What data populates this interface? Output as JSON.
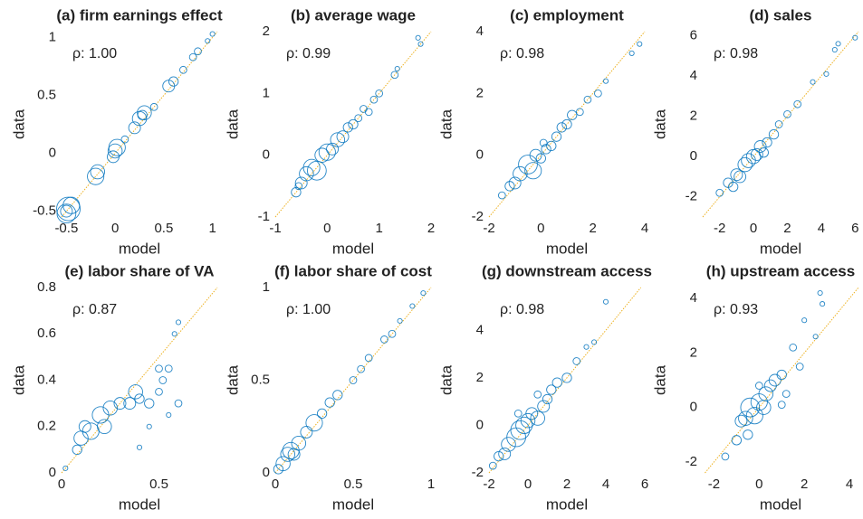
{
  "chart_data": [
    {
      "type": "scatter",
      "title": "(a) firm earnings effect",
      "xlabel": "model",
      "ylabel": "data",
      "annotation": "ρ: 1.00",
      "color": "#0072bd",
      "ref_color": "#edb120",
      "x": [
        -0.5,
        -0.48,
        -0.45,
        -0.5,
        -0.2,
        -0.18,
        0,
        0.02,
        -0.02,
        0.2,
        0.25,
        0.3,
        0.28,
        0.55,
        0.6,
        0.7,
        0.8,
        0.85,
        0.95,
        1.0,
        0.1,
        0.4
      ],
      "values": [
        -0.52,
        -0.48,
        -0.45,
        -0.5,
        -0.2,
        -0.16,
        0.02,
        0.05,
        -0.03,
        0.22,
        0.3,
        0.35,
        0.33,
        0.58,
        0.62,
        0.72,
        0.83,
        0.88,
        0.97,
        1.03,
        0.12,
        0.4
      ],
      "sizes": [
        8,
        10,
        7,
        5,
        7,
        6,
        6,
        7,
        5,
        5,
        6,
        6,
        4,
        5,
        4,
        3,
        3,
        3,
        2,
        2,
        3,
        3
      ],
      "xlim": [
        -0.55,
        1.05
      ],
      "xticks": [
        -0.5,
        0,
        0.5,
        1
      ],
      "ylim": [
        -0.55,
        1.05
      ],
      "yticks": [
        -0.5,
        0,
        0.5,
        1
      ]
    },
    {
      "type": "scatter",
      "title": "(b) average wage",
      "xlabel": "model",
      "ylabel": "data",
      "annotation": "ρ: 0.99",
      "color": "#0072bd",
      "ref_color": "#edb120",
      "x": [
        -0.6,
        -0.5,
        -0.4,
        -0.3,
        -0.2,
        -0.1,
        0,
        0.1,
        0.2,
        0.3,
        0.4,
        0.5,
        0.6,
        0.7,
        0.9,
        1.0,
        1.3,
        1.35,
        1.8,
        1.75,
        0.8,
        -0.55
      ],
      "values": [
        -0.6,
        -0.45,
        -0.3,
        -0.2,
        -0.25,
        0,
        0.05,
        0.1,
        0.25,
        0.3,
        0.45,
        0.5,
        0.6,
        0.75,
        0.9,
        1.0,
        1.3,
        1.4,
        1.8,
        1.9,
        0.7,
        -0.5
      ],
      "sizes": [
        4,
        5,
        6,
        7,
        8,
        6,
        7,
        5,
        6,
        5,
        4,
        4,
        3,
        3,
        3,
        3,
        3,
        2,
        2,
        2,
        3,
        3
      ],
      "xlim": [
        -1,
        2
      ],
      "xticks": [
        -1,
        0,
        1,
        2
      ],
      "ylim": [
        -1,
        2
      ],
      "yticks": [
        -1,
        0,
        1,
        2
      ]
    },
    {
      "type": "scatter",
      "title": "(c) employment",
      "xlabel": "model",
      "ylabel": "data",
      "annotation": "ρ: 0.98",
      "color": "#0072bd",
      "ref_color": "#edb120",
      "x": [
        -1.5,
        -1,
        -0.8,
        -0.5,
        -0.3,
        -0.2,
        0,
        0.2,
        0.4,
        0.6,
        0.8,
        1,
        1.2,
        1.5,
        1.8,
        2.2,
        3.5,
        3.8,
        -1.2,
        0.1,
        2.5
      ],
      "values": [
        -1.3,
        -0.9,
        -0.6,
        -0.3,
        -0.5,
        0,
        -0.1,
        0.2,
        0.3,
        0.6,
        0.9,
        1,
        1.3,
        1.4,
        1.8,
        2.0,
        3.3,
        3.6,
        -1,
        0.4,
        2.4
      ],
      "sizes": [
        3,
        5,
        6,
        8,
        7,
        5,
        4,
        4,
        4,
        4,
        4,
        4,
        4,
        3,
        3,
        3,
        2,
        2,
        4,
        3,
        2
      ],
      "xlim": [
        -2,
        4
      ],
      "xticks": [
        -2,
        0,
        2,
        4
      ],
      "ylim": [
        -2,
        4
      ],
      "yticks": [
        -2,
        0,
        2,
        4
      ]
    },
    {
      "type": "scatter",
      "title": "(d) sales",
      "xlabel": "model",
      "ylabel": "data",
      "annotation": "ρ: 0.98",
      "color": "#0072bd",
      "ref_color": "#edb120",
      "x": [
        -2,
        -1.5,
        -1,
        -0.8,
        -0.5,
        -0.3,
        0,
        0.2,
        0.4,
        0.8,
        1.2,
        1.5,
        2,
        2.6,
        3.5,
        4.3,
        4.8,
        5,
        6,
        -1.2,
        0.6
      ],
      "values": [
        -1.8,
        -1.3,
        -0.9,
        -1,
        -0.4,
        -0.2,
        0,
        0.1,
        0.5,
        0.7,
        1.1,
        1.6,
        2.1,
        2.6,
        3.7,
        4.1,
        5.3,
        5.6,
        5.9,
        -1.5,
        0.2
      ],
      "sizes": [
        3,
        4,
        5,
        5,
        6,
        6,
        6,
        5,
        5,
        4,
        4,
        3,
        3,
        3,
        2,
        2,
        2,
        2,
        2,
        4,
        4
      ],
      "xlim": [
        -3,
        6.2
      ],
      "xticks": [
        -2,
        0,
        2,
        4,
        6
      ],
      "ylim": [
        -3,
        6.2
      ],
      "yticks": [
        -2,
        0,
        2,
        4,
        6
      ]
    },
    {
      "type": "scatter",
      "title": "(e) labor share of VA",
      "xlabel": "model",
      "ylabel": "data",
      "annotation": "ρ: 0.87",
      "color": "#0072bd",
      "ref_color": "#edb120",
      "x": [
        0.02,
        0.08,
        0.1,
        0.12,
        0.15,
        0.2,
        0.22,
        0.25,
        0.3,
        0.35,
        0.38,
        0.4,
        0.45,
        0.5,
        0.52,
        0.55,
        0.58,
        0.6,
        0.6,
        0.55,
        0.45,
        0.4,
        0.5
      ],
      "values": [
        0.02,
        0.1,
        0.15,
        0.2,
        0.18,
        0.25,
        0.2,
        0.28,
        0.3,
        0.3,
        0.35,
        0.32,
        0.3,
        0.35,
        0.4,
        0.45,
        0.6,
        0.65,
        0.3,
        0.25,
        0.2,
        0.11,
        0.45
      ],
      "sizes": [
        2,
        4,
        6,
        5,
        7,
        7,
        6,
        6,
        5,
        5,
        6,
        4,
        4,
        3,
        3,
        3,
        2,
        2,
        3,
        2,
        2,
        2,
        3
      ],
      "xlim": [
        0,
        0.8
      ],
      "xticks": [
        0,
        0.5
      ],
      "ylim": [
        0,
        0.8
      ],
      "yticks": [
        0,
        0.2,
        0.4,
        0.6,
        0.8
      ]
    },
    {
      "type": "scatter",
      "title": "(f) labor share of cost",
      "xlabel": "model",
      "ylabel": "data",
      "annotation": "ρ: 1.00",
      "color": "#0072bd",
      "ref_color": "#edb120",
      "x": [
        0.02,
        0.05,
        0.08,
        0.1,
        0.15,
        0.2,
        0.25,
        0.3,
        0.35,
        0.4,
        0.5,
        0.55,
        0.6,
        0.7,
        0.75,
        0.8,
        0.88,
        0.95,
        0.12
      ],
      "values": [
        0.02,
        0.05,
        0.1,
        0.12,
        0.16,
        0.22,
        0.27,
        0.32,
        0.38,
        0.42,
        0.5,
        0.56,
        0.62,
        0.72,
        0.75,
        0.82,
        0.9,
        0.97,
        0.1
      ],
      "sizes": [
        4,
        6,
        6,
        7,
        6,
        5,
        7,
        4,
        4,
        4,
        3,
        3,
        3,
        3,
        3,
        2,
        2,
        2,
        5
      ],
      "xlim": [
        0,
        1
      ],
      "xticks": [
        0,
        0.5,
        1
      ],
      "ylim": [
        0,
        1
      ],
      "yticks": [
        0,
        0.5,
        1
      ]
    },
    {
      "type": "scatter",
      "title": "(g) downstream access",
      "xlabel": "model",
      "ylabel": "data",
      "annotation": "ρ: 0.98",
      "color": "#0072bd",
      "ref_color": "#edb120",
      "x": [
        -1.8,
        -1.5,
        -1.2,
        -1,
        -0.6,
        -0.4,
        -0.2,
        0,
        0.2,
        0.5,
        0.8,
        1,
        1.2,
        1.5,
        2,
        2.5,
        3,
        3.4,
        4,
        -0.5,
        0.5
      ],
      "values": [
        -1.7,
        -1.3,
        -1.2,
        -0.8,
        -0.5,
        -0.2,
        0,
        0.2,
        0.5,
        0.3,
        0.8,
        1.1,
        1.5,
        1.8,
        2,
        2.7,
        3.3,
        3.5,
        5.2,
        0.5,
        1.3
      ],
      "sizes": [
        3,
        4,
        5,
        6,
        8,
        8,
        7,
        6,
        5,
        6,
        5,
        4,
        4,
        4,
        4,
        3,
        2,
        2,
        2,
        3,
        3
      ],
      "xlim": [
        -2,
        6
      ],
      "xticks": [
        -2,
        0,
        2,
        4,
        6
      ],
      "ylim": [
        -2,
        5.8
      ],
      "yticks": [
        -2,
        0,
        2,
        4
      ]
    },
    {
      "type": "scatter",
      "title": "(h) upstream access",
      "xlabel": "model",
      "ylabel": "data",
      "annotation": "ρ: 0.93",
      "color": "#0072bd",
      "ref_color": "#edb120",
      "x": [
        -1.5,
        -1,
        -0.8,
        -0.6,
        -0.4,
        -0.2,
        0,
        0.2,
        0.3,
        0.5,
        0.7,
        1,
        1.2,
        1.5,
        1.8,
        2,
        2.5,
        2.7,
        2.8,
        0,
        -0.5,
        1
      ],
      "values": [
        -1.8,
        -1.2,
        -0.5,
        -0.4,
        0,
        -0.3,
        0.2,
        0,
        0.5,
        0.8,
        1,
        1.2,
        0.5,
        2.2,
        1.5,
        3.2,
        2.6,
        4.2,
        3.8,
        0.8,
        -1,
        0.1
      ],
      "sizes": [
        3,
        4,
        5,
        6,
        8,
        7,
        7,
        6,
        6,
        5,
        5,
        4,
        3,
        3,
        3,
        2,
        2,
        2,
        2,
        3,
        4,
        3
      ],
      "xlim": [
        -2.5,
        4.4
      ],
      "xticks": [
        -2,
        0,
        2,
        4
      ],
      "ylim": [
        -2.4,
        4.4
      ],
      "yticks": [
        -2,
        0,
        2,
        4
      ]
    }
  ]
}
